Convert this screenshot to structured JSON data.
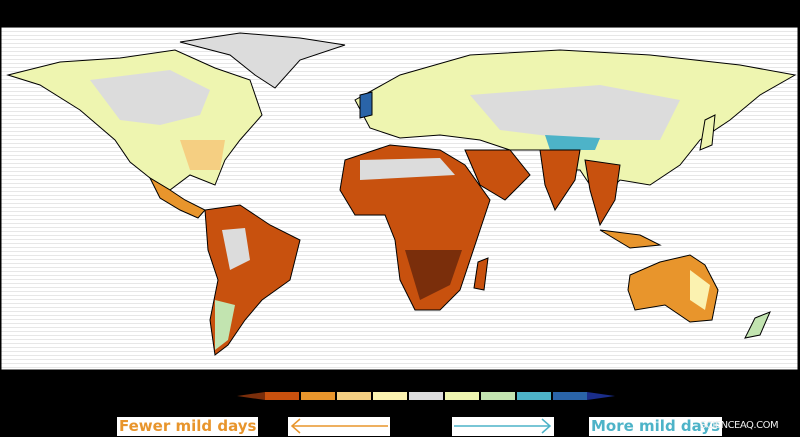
{
  "legend": {
    "left_label": "Fewer mild days",
    "right_label": "More mild days",
    "colorbar_colors": [
      "#7a2e0b",
      "#c8510e",
      "#e8952c",
      "#f5cf82",
      "#fbf2b0",
      "#dcdcdc",
      "#eef5b0",
      "#c2e4b0",
      "#4db3c8",
      "#2a64a8",
      "#1a2d8a"
    ],
    "left_arrow_color": "#e8952c",
    "right_arrow_color": "#4db3c8"
  },
  "watermark": "SCIENCEAQ.COM"
}
